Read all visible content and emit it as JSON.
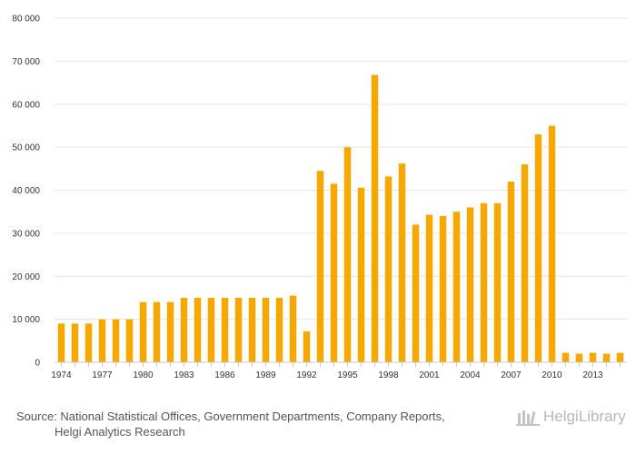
{
  "chart_data": {
    "type": "bar",
    "title": "",
    "xlabel": "",
    "ylabel": "",
    "ylim": [
      0,
      80000
    ],
    "y_ticks": [
      0,
      10000,
      20000,
      30000,
      40000,
      50000,
      60000,
      70000,
      80000
    ],
    "y_tick_labels": [
      "0",
      "10 000",
      "20 000",
      "30 000",
      "40 000",
      "50 000",
      "60 000",
      "70 000",
      "80 000"
    ],
    "categories": [
      "1974",
      "1975",
      "1976",
      "1977",
      "1978",
      "1979",
      "1980",
      "1981",
      "1982",
      "1983",
      "1984",
      "1985",
      "1986",
      "1987",
      "1988",
      "1989",
      "1990",
      "1991",
      "1992",
      "1993",
      "1994",
      "1995",
      "1996",
      "1997",
      "1998",
      "1999",
      "2000",
      "2001",
      "2002",
      "2003",
      "2004",
      "2005",
      "2006",
      "2007",
      "2008",
      "2009",
      "2010",
      "2011",
      "2012",
      "2013",
      "2014",
      "2015"
    ],
    "x_tick_labels": [
      "1974",
      "1977",
      "1980",
      "1983",
      "1986",
      "1989",
      "1992",
      "1995",
      "1998",
      "2001",
      "2004",
      "2007",
      "2010",
      "2013"
    ],
    "values": [
      9000,
      9000,
      9000,
      10000,
      10000,
      10000,
      14000,
      14000,
      14000,
      15000,
      15000,
      15000,
      15000,
      15000,
      15000,
      15000,
      15000,
      15500,
      7200,
      44500,
      41500,
      50000,
      40600,
      66800,
      43200,
      46200,
      32000,
      34300,
      34000,
      35000,
      36000,
      37000,
      37000,
      42000,
      46000,
      53000,
      55000,
      2200,
      2000,
      2200,
      2000,
      2200
    ],
    "bar_color": "#f5a800",
    "grid": true
  },
  "footer": {
    "source_line1": "Source: National Statistical Offices, Government Departments, Company Reports,",
    "source_line2": "Helgi Analytics Research",
    "logo_text": "HelgiLibrary"
  }
}
